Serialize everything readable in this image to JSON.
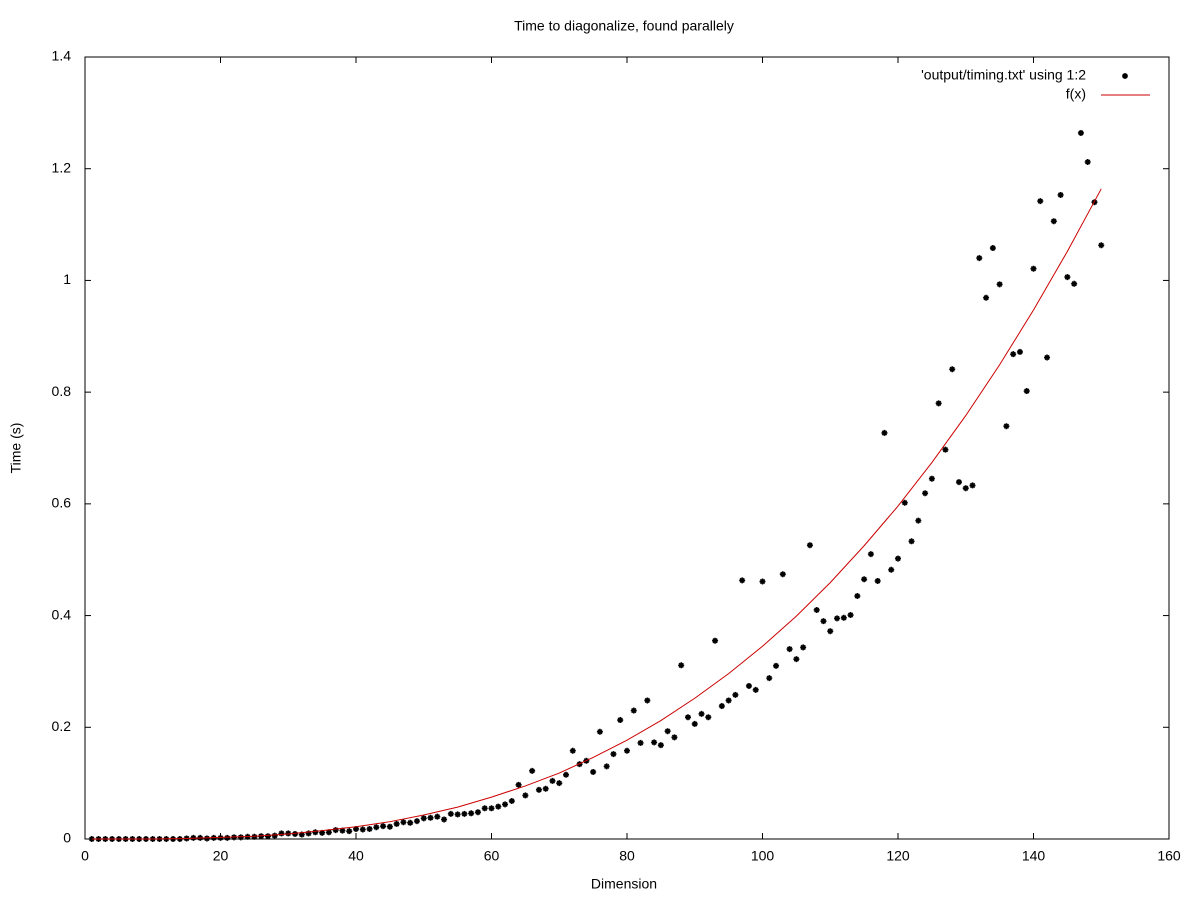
{
  "chart_data": {
    "type": "scatter",
    "title": "Time to diagonalize, found parallely",
    "xlabel": "Dimension",
    "ylabel": "Time (s)",
    "xlim": [
      0,
      160
    ],
    "xticks": [
      0,
      20,
      40,
      60,
      80,
      100,
      120,
      140,
      160
    ],
    "ylim": [
      0,
      1.4
    ],
    "yticks": [
      0,
      0.2,
      0.4,
      0.6,
      0.8,
      1,
      1.2,
      1.4
    ],
    "grid": false,
    "legend": "top-right",
    "series": [
      {
        "name": "'output/timing.txt' using 1:2",
        "color": "#000000",
        "style": "points",
        "x": [
          1,
          2,
          3,
          4,
          5,
          6,
          7,
          8,
          9,
          10,
          11,
          12,
          13,
          14,
          15,
          16,
          17,
          18,
          19,
          20,
          21,
          22,
          23,
          24,
          25,
          26,
          27,
          28,
          29,
          30,
          31,
          32,
          33,
          34,
          35,
          36,
          37,
          38,
          39,
          40,
          41,
          42,
          43,
          44,
          45,
          46,
          47,
          48,
          49,
          50,
          51,
          52,
          53,
          54,
          55,
          56,
          57,
          58,
          59,
          60,
          61,
          62,
          63,
          64,
          65,
          66,
          67,
          68,
          69,
          70,
          71,
          72,
          73,
          74,
          75,
          76,
          77,
          78,
          79,
          80,
          81,
          82,
          83,
          84,
          85,
          86,
          87,
          88,
          89,
          90,
          91,
          92,
          93,
          94,
          95,
          96,
          97,
          98,
          99,
          100,
          101,
          102,
          103,
          104,
          105,
          106,
          107,
          108,
          109,
          110,
          111,
          112,
          113,
          114,
          115,
          116,
          117,
          118,
          119,
          120,
          121,
          122,
          123,
          124,
          125,
          126,
          127,
          128,
          129,
          130,
          131,
          132,
          133,
          134,
          135,
          136,
          137,
          138,
          139,
          140,
          141,
          142,
          143,
          144,
          145,
          146,
          147,
          148,
          149,
          150
        ],
        "values": [
          0,
          0,
          0,
          0,
          0,
          0,
          0,
          0,
          0,
          0,
          0,
          0,
          0,
          0,
          0.001,
          0.002,
          0.002,
          0.001,
          0.002,
          0.002,
          0.002,
          0.003,
          0.003,
          0.004,
          0.004,
          0.005,
          0.005,
          0.006,
          0.01,
          0.01,
          0.009,
          0.008,
          0.01,
          0.012,
          0.011,
          0.012,
          0.016,
          0.015,
          0.014,
          0.018,
          0.017,
          0.018,
          0.021,
          0.023,
          0.022,
          0.027,
          0.03,
          0.029,
          0.032,
          0.037,
          0.038,
          0.04,
          0.035,
          0.045,
          0.044,
          0.045,
          0.046,
          0.048,
          0.055,
          0.055,
          0.058,
          0.062,
          0.068,
          0.097,
          0.078,
          0.122,
          0.088,
          0.09,
          0.104,
          0.1,
          0.115,
          0.158,
          0.134,
          0.14,
          0.12,
          0.192,
          0.13,
          0.152,
          0.213,
          0.158,
          0.23,
          0.172,
          0.248,
          0.173,
          0.168,
          0.193,
          0.182,
          0.311,
          0.218,
          0.206,
          0.224,
          0.218,
          0.355,
          0.238,
          0.248,
          0.258,
          0.463,
          0.274,
          0.267,
          0.461,
          0.288,
          0.31,
          0.474,
          0.34,
          0.322,
          0.343,
          0.526,
          0.41,
          0.39,
          0.372,
          0.395,
          0.396,
          0.401,
          0.435,
          0.465,
          0.51,
          0.462,
          0.727,
          0.482,
          0.502,
          0.602,
          0.533,
          0.57,
          0.619,
          0.645,
          0.78,
          0.697,
          0.841,
          0.639,
          0.628,
          0.633,
          1.04,
          0.969,
          1.058,
          0.993,
          0.739,
          0.868,
          0.872,
          0.802,
          1.021,
          1.142,
          0.862,
          1.106,
          1.153,
          1.006,
          0.994,
          1.264,
          1.212,
          1.14,
          1.063
        ]
      },
      {
        "name": "f(x)",
        "color": "#cc0000",
        "style": "lines",
        "x": [
          1,
          5,
          10,
          15,
          20,
          25,
          30,
          35,
          40,
          45,
          50,
          55,
          60,
          65,
          70,
          75,
          80,
          85,
          90,
          95,
          100,
          105,
          110,
          115,
          120,
          125,
          130,
          135,
          140,
          145,
          150
        ],
        "values": [
          0,
          0,
          0,
          0.001,
          0.003,
          0.005,
          0.009,
          0.015,
          0.022,
          0.031,
          0.043,
          0.057,
          0.075,
          0.095,
          0.118,
          0.146,
          0.177,
          0.212,
          0.252,
          0.296,
          0.345,
          0.399,
          0.459,
          0.525,
          0.596,
          0.674,
          0.758,
          0.849,
          0.947,
          1.052,
          1.164
        ]
      }
    ]
  }
}
